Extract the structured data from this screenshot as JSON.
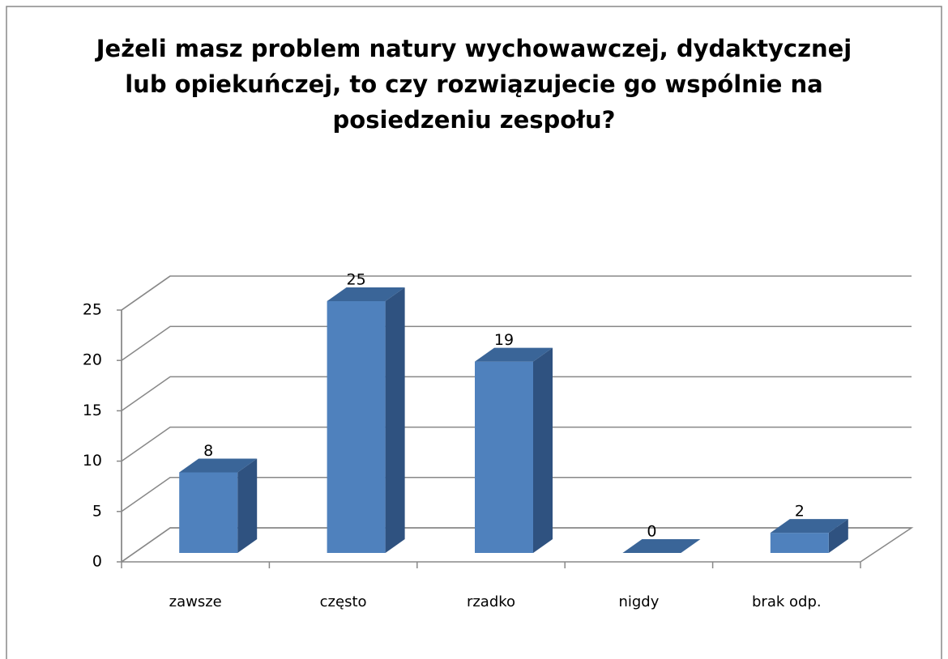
{
  "chart_data": {
    "type": "bar3d",
    "title": [
      "Jeżeli masz problem natury wychowawczej, dydaktycznej",
      "lub opiekuńczej,  to czy rozwiązujecie go wspólnie na",
      "posiedzeniu zespołu?"
    ],
    "categories": [
      "zawsze",
      "często",
      "rzadko",
      "nigdy",
      "brak odp."
    ],
    "values": [
      8,
      25,
      19,
      0,
      2
    ],
    "color": "#4f81bd",
    "ylim": [
      0,
      25
    ],
    "yticks": [
      0,
      5,
      10,
      15,
      20,
      25
    ],
    "grid": true
  }
}
